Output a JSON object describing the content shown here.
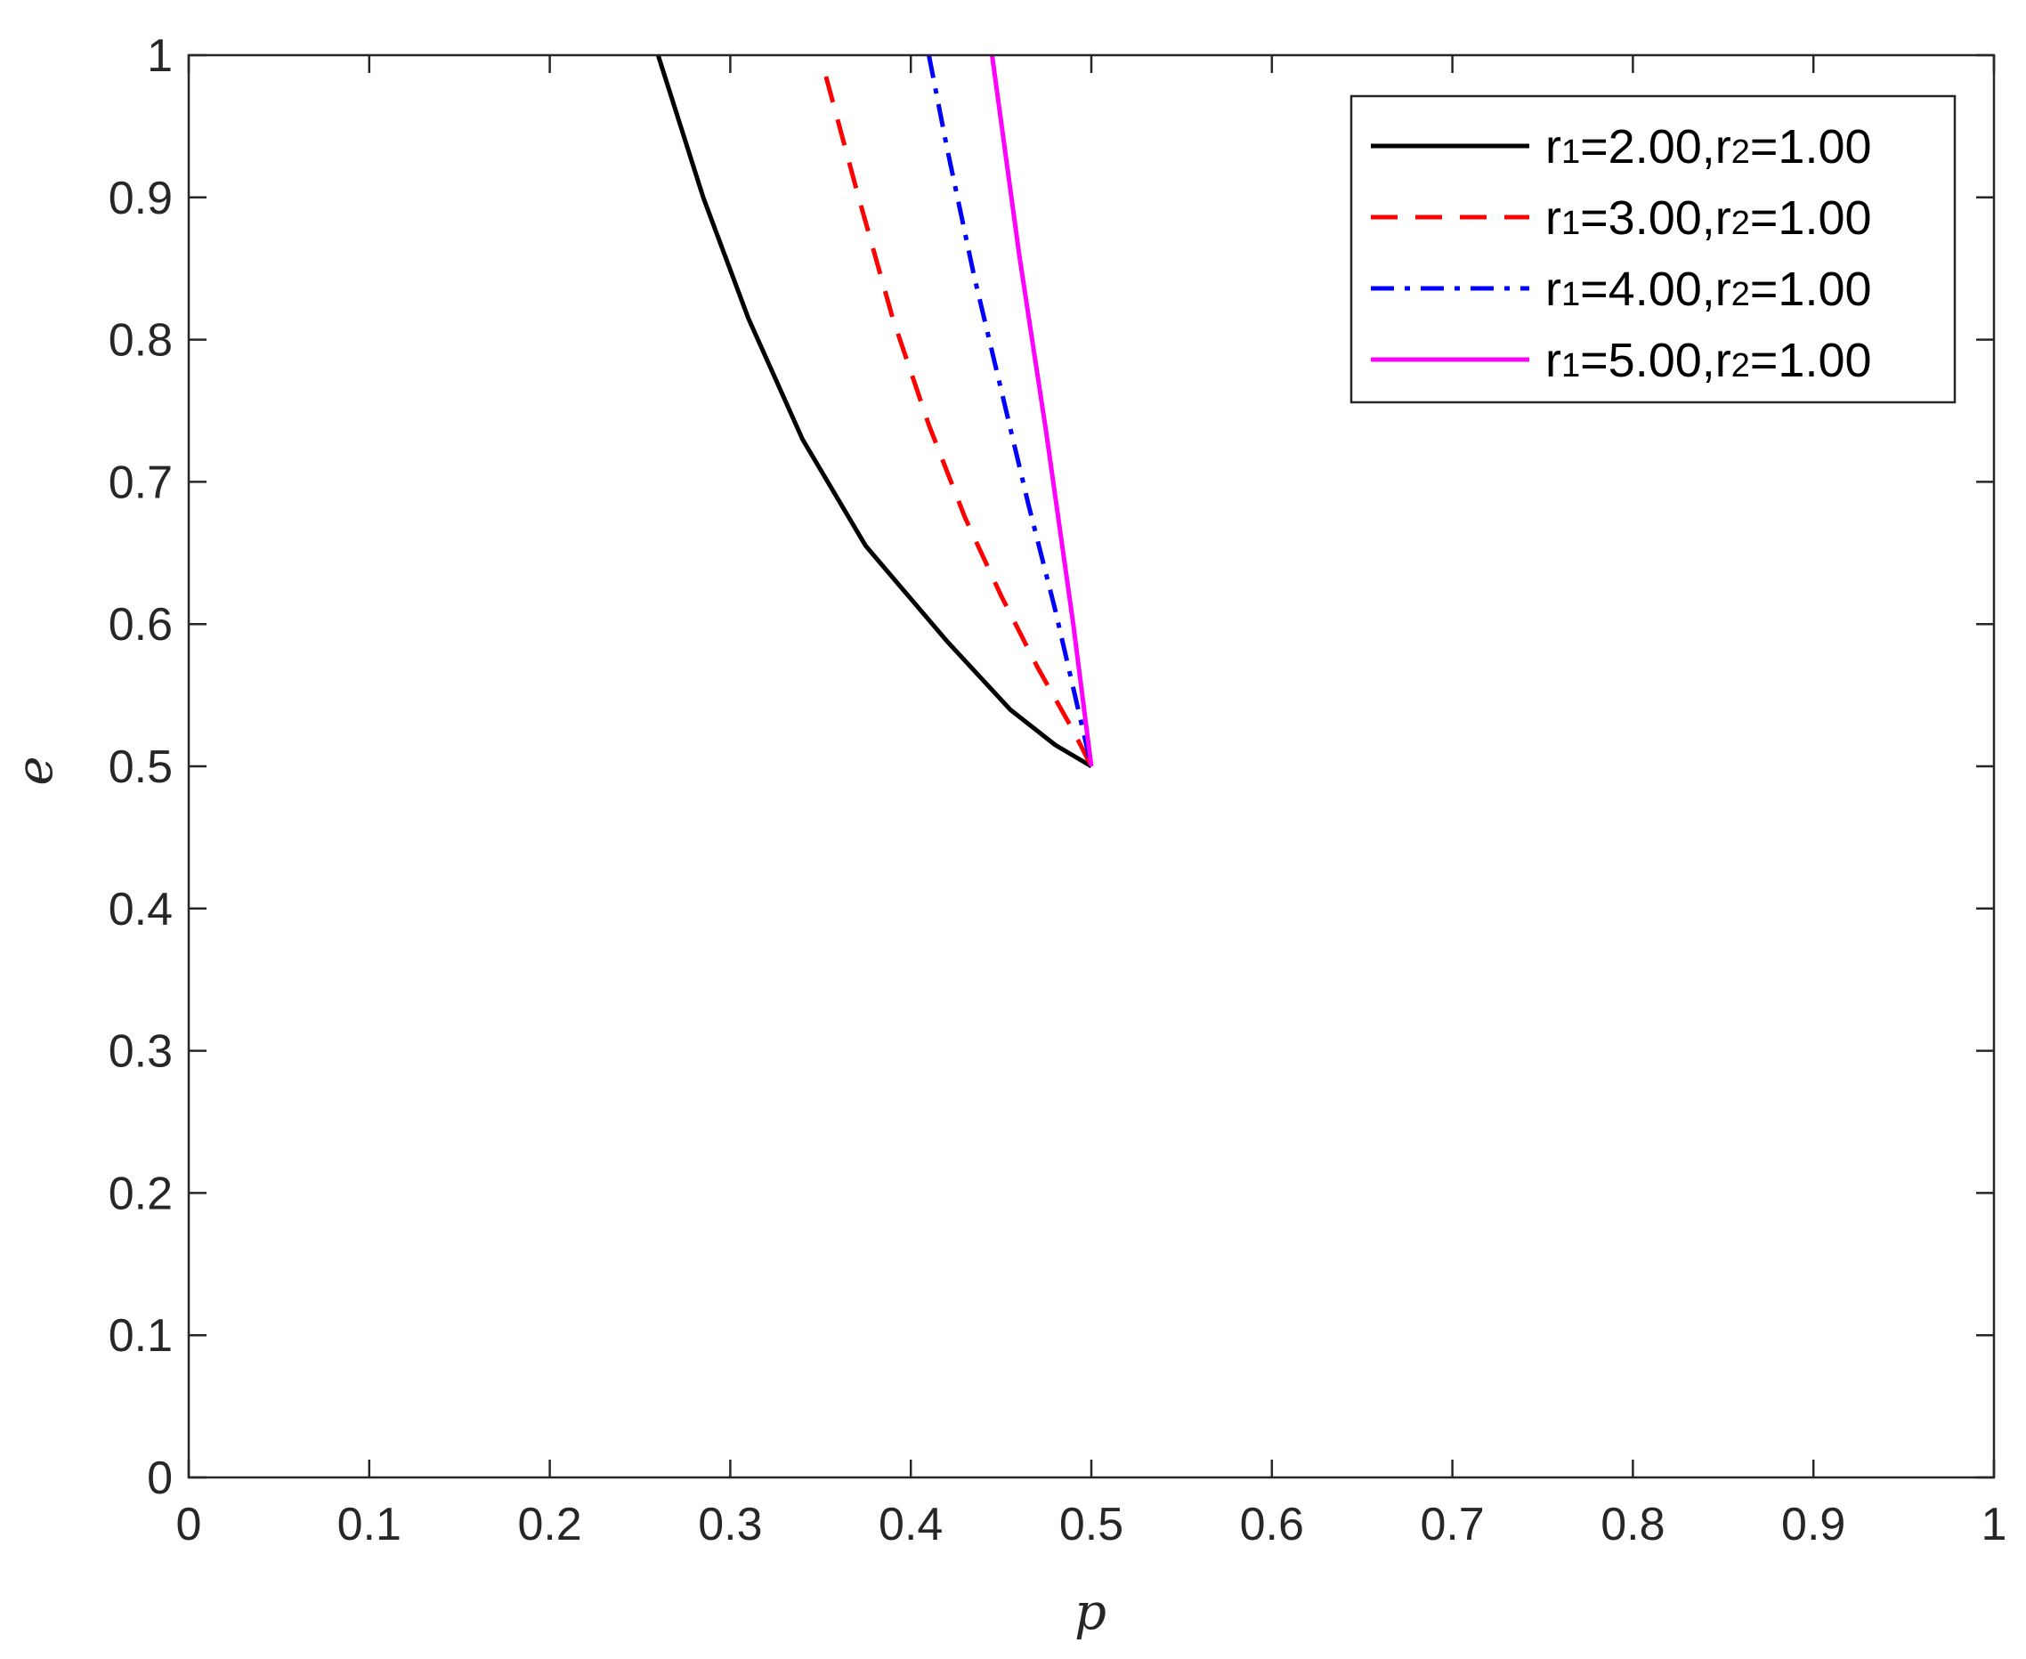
{
  "chart_data": {
    "type": "line",
    "xlabel": "p",
    "ylabel": "e",
    "xlim": [
      0,
      1
    ],
    "ylim": [
      0,
      1
    ],
    "xticks": [
      "0",
      "0.1",
      "0.2",
      "0.3",
      "0.4",
      "0.5",
      "0.6",
      "0.7",
      "0.8",
      "0.9",
      "1"
    ],
    "yticks": [
      "0",
      "0.1",
      "0.2",
      "0.3",
      "0.4",
      "0.5",
      "0.6",
      "0.7",
      "0.8",
      "0.9",
      "1"
    ],
    "grid": false,
    "legend_position": "top-right",
    "series": [
      {
        "name": "r1=2.00,r2=1.00",
        "legend_parts": [
          "r",
          "1",
          "=2.00,r",
          "2",
          "=1.00"
        ],
        "color": "#000000",
        "style": "solid",
        "x": [
          0.26,
          0.27,
          0.285,
          0.31,
          0.34,
          0.375,
          0.42,
          0.455,
          0.48,
          0.5
        ],
        "y": [
          1.0,
          0.96,
          0.9,
          0.815,
          0.73,
          0.655,
          0.588,
          0.54,
          0.515,
          0.5
        ]
      },
      {
        "name": "r1=3.00,r2=1.00",
        "legend_parts": [
          "r",
          "1",
          "=3.00,r",
          "2",
          "=1.00"
        ],
        "color": "#ff0000",
        "style": "dashed",
        "x": [
          0.353,
          0.37,
          0.39,
          0.41,
          0.43,
          0.45,
          0.47,
          0.49,
          0.5
        ],
        "y": [
          0.985,
          0.905,
          0.815,
          0.74,
          0.675,
          0.62,
          0.57,
          0.525,
          0.5
        ]
      },
      {
        "name": "r1=4.00,r2=1.00",
        "legend_parts": [
          "r",
          "1",
          "=4.00,r",
          "2",
          "=1.00"
        ],
        "color": "#0000ff",
        "style": "dashdot",
        "x": [
          0.41,
          0.42,
          0.435,
          0.45,
          0.465,
          0.48,
          0.49,
          0.5
        ],
        "y": [
          1.0,
          0.935,
          0.845,
          0.765,
          0.685,
          0.61,
          0.555,
          0.5
        ]
      },
      {
        "name": "r1=5.00,r2=1.00",
        "legend_parts": [
          "r",
          "1",
          "=5.00,r",
          "2",
          "=1.00"
        ],
        "color": "#ff00ff",
        "style": "solid",
        "x": [
          0.445,
          0.46,
          0.475,
          0.49,
          0.5
        ],
        "y": [
          1.0,
          0.86,
          0.735,
          0.6,
          0.5
        ]
      }
    ]
  }
}
